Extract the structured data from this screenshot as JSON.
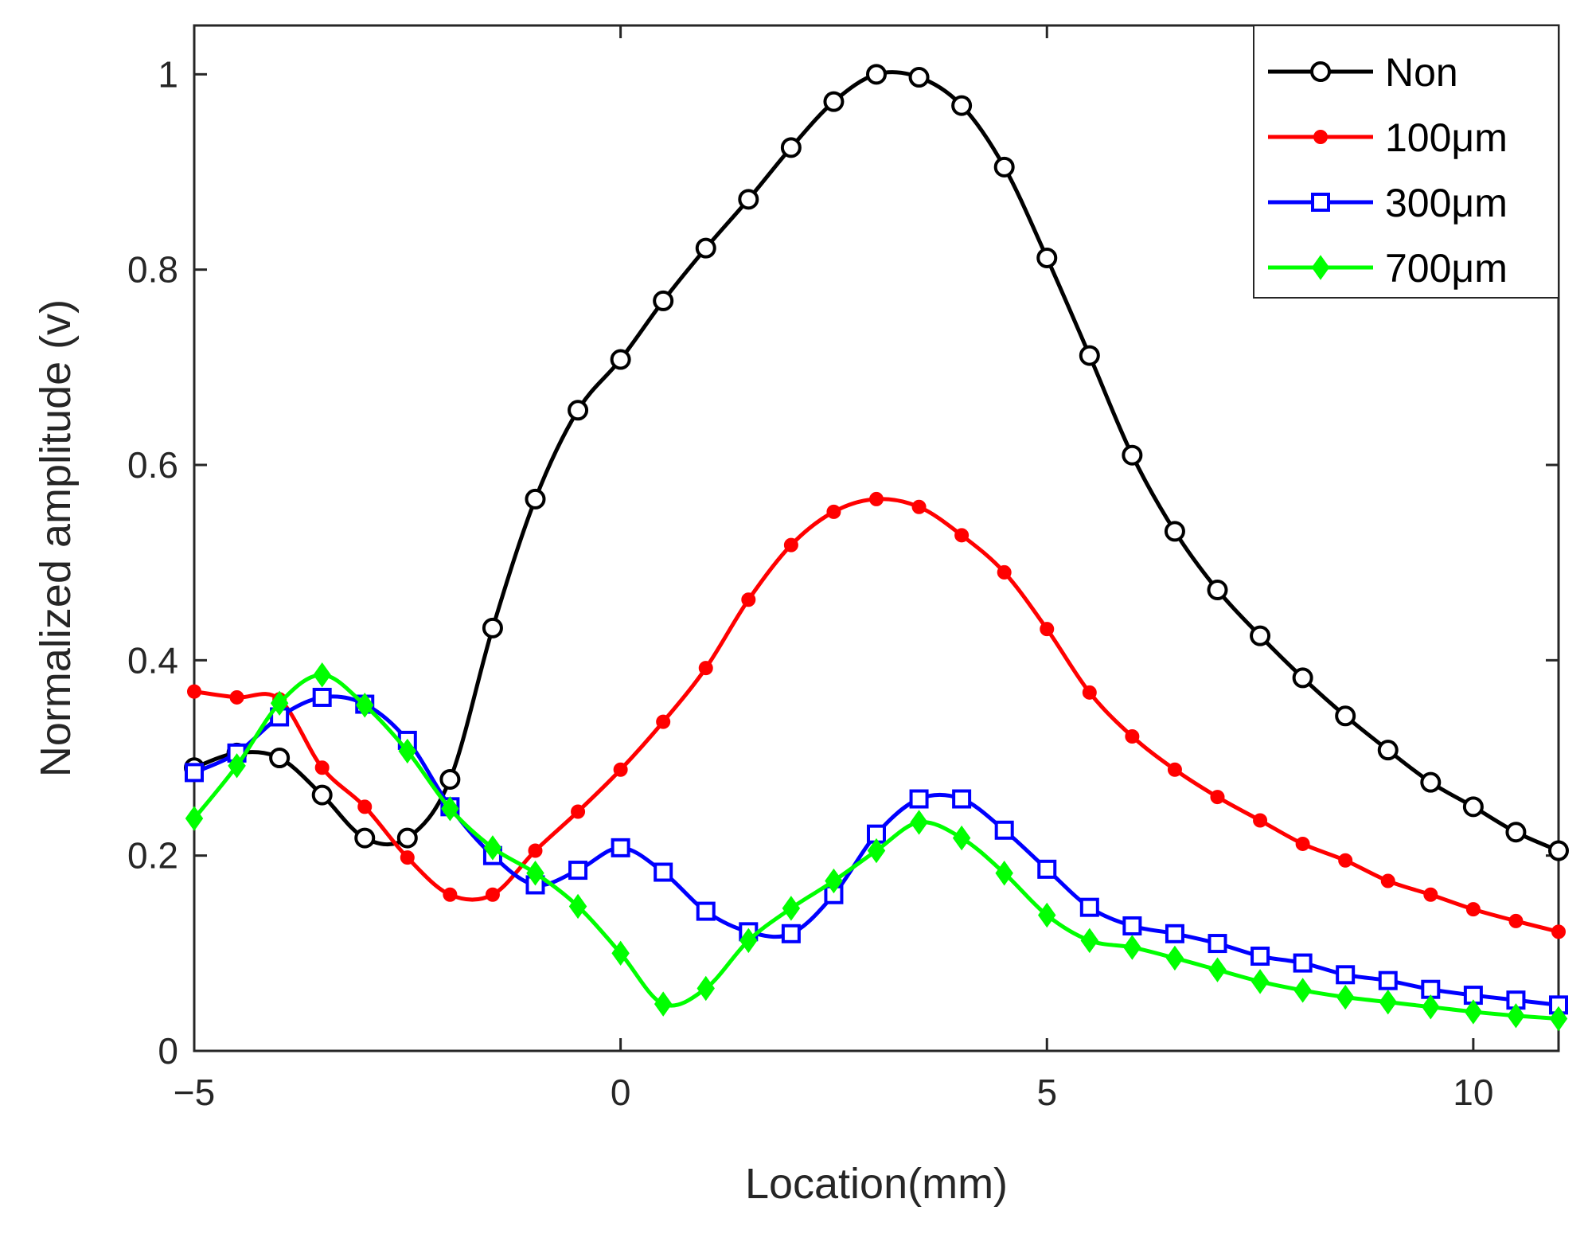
{
  "chart_data": {
    "type": "line",
    "title": "",
    "xlabel": "Location(mm)",
    "ylabel": "Normalized amplitude (v)",
    "xlim": [
      -5,
      11
    ],
    "ylim": [
      0,
      1.05
    ],
    "xticks": [
      -5,
      0,
      5,
      10
    ],
    "xtick_labels": [
      "−5",
      "0",
      "5",
      "10"
    ],
    "yticks": [
      0,
      0.2,
      0.4,
      0.6,
      0.8,
      1
    ],
    "ytick_labels": [
      "0",
      "0.2",
      "0.4",
      "0.6",
      "0.8",
      "1"
    ],
    "grid": false,
    "legend_position": "top-right",
    "x": [
      -5,
      -4.5,
      -4,
      -3.5,
      -3,
      -2.5,
      -2,
      -1.5,
      -1,
      -0.5,
      0,
      0.5,
      1,
      1.5,
      2,
      2.5,
      3,
      3.5,
      4,
      4.5,
      5,
      5.5,
      6,
      6.5,
      7,
      7.5,
      8,
      8.5,
      9,
      9.5,
      10,
      10.5,
      11
    ],
    "series": [
      {
        "name": "Non",
        "color": "#000000",
        "marker": "circle-open",
        "values": [
          0.29,
          0.305,
          0.3,
          0.262,
          0.218,
          0.218,
          0.278,
          0.433,
          0.565,
          0.656,
          0.708,
          0.768,
          0.822,
          0.872,
          0.925,
          0.972,
          1.0,
          0.997,
          0.968,
          0.905,
          0.812,
          0.712,
          0.61,
          0.532,
          0.472,
          0.425,
          0.382,
          0.343,
          0.308,
          0.275,
          0.25,
          0.224,
          0.205
        ]
      },
      {
        "name": "100μm",
        "color": "#ff0000",
        "marker": "circle-filled",
        "values": [
          0.368,
          0.362,
          0.36,
          0.29,
          0.25,
          0.198,
          0.16,
          0.16,
          0.205,
          0.245,
          0.288,
          0.337,
          0.392,
          0.462,
          0.518,
          0.552,
          0.565,
          0.557,
          0.528,
          0.49,
          0.432,
          0.367,
          0.322,
          0.288,
          0.26,
          0.236,
          0.212,
          0.195,
          0.174,
          0.16,
          0.145,
          0.133,
          0.122
        ]
      },
      {
        "name": "300μm",
        "color": "#0000ff",
        "marker": "square-open",
        "values": [
          0.285,
          0.305,
          0.342,
          0.362,
          0.355,
          0.318,
          0.25,
          0.2,
          0.17,
          0.185,
          0.208,
          0.183,
          0.143,
          0.122,
          0.12,
          0.16,
          0.222,
          0.258,
          0.258,
          0.226,
          0.186,
          0.147,
          0.128,
          0.12,
          0.11,
          0.097,
          0.09,
          0.078,
          0.072,
          0.063,
          0.057,
          0.052,
          0.047
        ]
      },
      {
        "name": "700μm",
        "color": "#00ff00",
        "marker": "diamond-filled",
        "values": [
          0.238,
          0.292,
          0.356,
          0.385,
          0.354,
          0.307,
          0.248,
          0.208,
          0.182,
          0.148,
          0.1,
          0.048,
          0.064,
          0.113,
          0.146,
          0.174,
          0.205,
          0.234,
          0.218,
          0.182,
          0.139,
          0.113,
          0.106,
          0.095,
          0.083,
          0.071,
          0.062,
          0.055,
          0.05,
          0.045,
          0.04,
          0.036,
          0.033
        ]
      }
    ]
  }
}
